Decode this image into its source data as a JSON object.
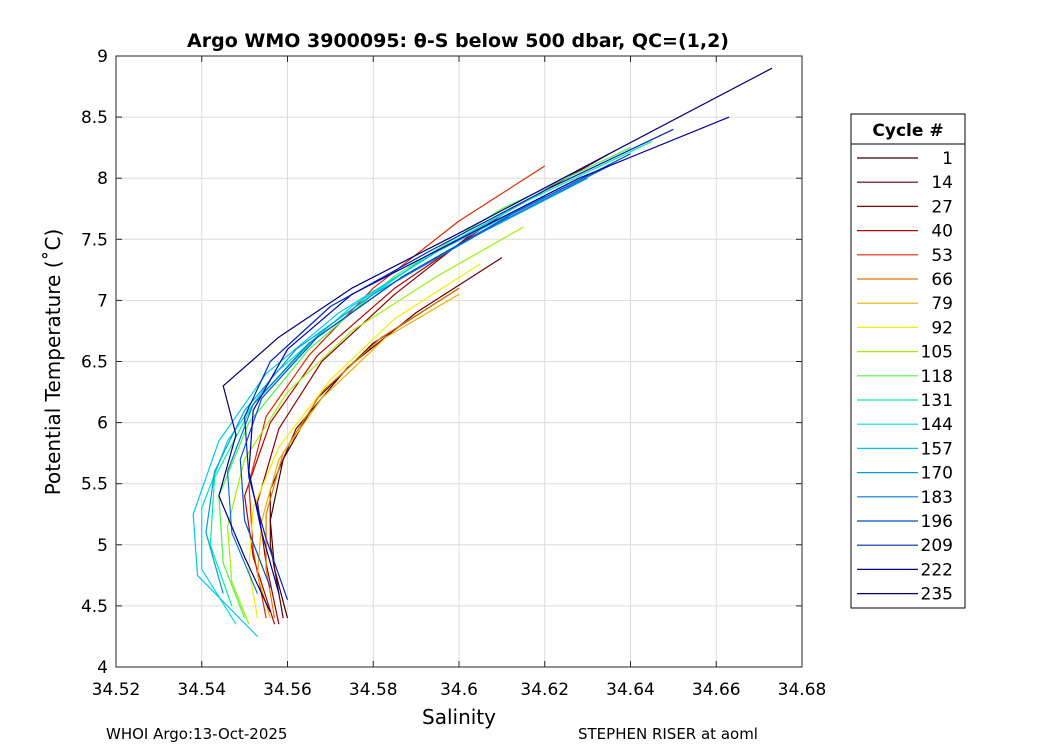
{
  "chart_data": {
    "type": "line",
    "title": "Argo WMO 3900095: θ-S below 500 dbar,  QC=(1,2)",
    "xlabel": "Salinity",
    "ylabel": "Potential Temperature (˚C)",
    "xlim": [
      34.52,
      34.68
    ],
    "ylim": [
      4,
      9
    ],
    "xticks": [
      34.52,
      34.54,
      34.56,
      34.58,
      34.6,
      34.62,
      34.64,
      34.66,
      34.68
    ],
    "xtick_labels": [
      "34.52",
      "34.54",
      "34.56",
      "34.58",
      "34.6",
      "34.62",
      "34.64",
      "34.66",
      "34.68"
    ],
    "yticks": [
      4,
      4.5,
      5,
      5.5,
      6,
      6.5,
      7,
      7.5,
      8,
      8.5,
      9
    ],
    "ytick_labels": [
      "4",
      "4.5",
      "5",
      "5.5",
      "6",
      "6.5",
      "7",
      "7.5",
      "8",
      "8.5",
      "9"
    ],
    "grid": true,
    "legend": {
      "title": "Cycle #",
      "placement": "outside-right",
      "entries": [
        {
          "label": "1",
          "color": "#3c0000"
        },
        {
          "label": "14",
          "color": "#640000"
        },
        {
          "label": "27",
          "color": "#8c0000"
        },
        {
          "label": "40",
          "color": "#b40000"
        },
        {
          "label": "53",
          "color": "#dc2800"
        },
        {
          "label": "66",
          "color": "#e67800"
        },
        {
          "label": "79",
          "color": "#e6b400"
        },
        {
          "label": "92",
          "color": "#f0f000"
        },
        {
          "label": "105",
          "color": "#a0f000"
        },
        {
          "label": "118",
          "color": "#50f050"
        },
        {
          "label": "131",
          "color": "#00f0a0"
        },
        {
          "label": "144",
          "color": "#00dcdc"
        },
        {
          "label": "157",
          "color": "#00c8f0"
        },
        {
          "label": "170",
          "color": "#00a0dc"
        },
        {
          "label": "183",
          "color": "#0078dc"
        },
        {
          "label": "196",
          "color": "#0050c8"
        },
        {
          "label": "209",
          "color": "#0028b4"
        },
        {
          "label": "222",
          "color": "#0000a0"
        },
        {
          "label": "235",
          "color": "#000078"
        }
      ]
    },
    "series": [
      {
        "name": "1",
        "color": "#3c0000",
        "points": [
          [
            34.6,
            7.1
          ],
          [
            34.58,
            6.65
          ],
          [
            34.567,
            6.2
          ],
          [
            34.559,
            5.7
          ],
          [
            34.556,
            5.2
          ],
          [
            34.557,
            4.8
          ],
          [
            34.56,
            4.4
          ]
        ]
      },
      {
        "name": "14",
        "color": "#640000",
        "points": [
          [
            34.61,
            7.35
          ],
          [
            34.59,
            6.9
          ],
          [
            34.574,
            6.45
          ],
          [
            34.562,
            5.95
          ],
          [
            34.556,
            5.45
          ],
          [
            34.556,
            5.0
          ],
          [
            34.559,
            4.4
          ]
        ]
      },
      {
        "name": "27",
        "color": "#8c0000",
        "points": [
          [
            34.63,
            8.1
          ],
          [
            34.605,
            7.6
          ],
          [
            34.585,
            7.05
          ],
          [
            34.568,
            6.5
          ],
          [
            34.558,
            5.95
          ],
          [
            34.553,
            5.35
          ],
          [
            34.555,
            4.85
          ],
          [
            34.558,
            4.35
          ]
        ]
      },
      {
        "name": "40",
        "color": "#b40000",
        "points": [
          [
            34.635,
            8.2
          ],
          [
            34.61,
            7.7
          ],
          [
            34.585,
            7.1
          ],
          [
            34.567,
            6.55
          ],
          [
            34.556,
            6.0
          ],
          [
            34.55,
            5.4
          ],
          [
            34.552,
            4.9
          ],
          [
            34.557,
            4.35
          ]
        ]
      },
      {
        "name": "53",
        "color": "#dc2800",
        "points": [
          [
            34.62,
            8.1
          ],
          [
            34.6,
            7.65
          ],
          [
            34.58,
            7.1
          ],
          [
            34.565,
            6.55
          ],
          [
            34.555,
            6.05
          ],
          [
            34.551,
            5.5
          ],
          [
            34.552,
            4.95
          ],
          [
            34.555,
            4.4
          ]
        ]
      },
      {
        "name": "66",
        "color": "#e67800",
        "points": [
          [
            34.6,
            7.1
          ],
          [
            34.582,
            6.7
          ],
          [
            34.568,
            6.25
          ],
          [
            34.559,
            5.75
          ],
          [
            34.555,
            5.25
          ],
          [
            34.555,
            4.8
          ],
          [
            34.557,
            4.4
          ]
        ]
      },
      {
        "name": "79",
        "color": "#e6b400",
        "points": [
          [
            34.6,
            7.05
          ],
          [
            34.583,
            6.7
          ],
          [
            34.568,
            6.2
          ],
          [
            34.558,
            5.7
          ],
          [
            34.554,
            5.2
          ],
          [
            34.553,
            4.75
          ],
          [
            34.556,
            4.4
          ]
        ]
      },
      {
        "name": "92",
        "color": "#f0f000",
        "points": [
          [
            34.605,
            7.3
          ],
          [
            34.585,
            6.85
          ],
          [
            34.57,
            6.35
          ],
          [
            34.558,
            5.8
          ],
          [
            34.552,
            5.3
          ],
          [
            34.551,
            4.8
          ],
          [
            34.553,
            4.4
          ]
        ]
      },
      {
        "name": "105",
        "color": "#a0f000",
        "points": [
          [
            34.615,
            7.6
          ],
          [
            34.595,
            7.2
          ],
          [
            34.575,
            6.75
          ],
          [
            34.56,
            6.25
          ],
          [
            34.55,
            5.7
          ],
          [
            34.546,
            5.15
          ],
          [
            34.547,
            4.7
          ],
          [
            34.551,
            4.35
          ]
        ]
      },
      {
        "name": "118",
        "color": "#50f050",
        "points": [
          [
            34.64,
            8.25
          ],
          [
            34.61,
            7.75
          ],
          [
            34.585,
            7.2
          ],
          [
            34.565,
            6.6
          ],
          [
            34.551,
            6.0
          ],
          [
            34.544,
            5.4
          ],
          [
            34.545,
            4.85
          ],
          [
            34.55,
            4.4
          ]
        ]
      },
      {
        "name": "131",
        "color": "#00f0a0",
        "points": [
          [
            34.645,
            8.3
          ],
          [
            34.615,
            7.8
          ],
          [
            34.59,
            7.3
          ],
          [
            34.568,
            6.75
          ],
          [
            34.552,
            6.15
          ],
          [
            34.543,
            5.55
          ],
          [
            34.542,
            5.0
          ],
          [
            34.547,
            4.5
          ]
        ]
      },
      {
        "name": "144",
        "color": "#00dcdc",
        "points": [
          [
            34.62,
            7.9
          ],
          [
            34.597,
            7.45
          ],
          [
            34.575,
            6.95
          ],
          [
            34.557,
            6.4
          ],
          [
            34.546,
            5.85
          ],
          [
            34.54,
            5.3
          ],
          [
            34.54,
            4.8
          ],
          [
            34.548,
            4.35
          ]
        ]
      },
      {
        "name": "157",
        "color": "#00c8f0",
        "points": [
          [
            34.62,
            7.85
          ],
          [
            34.595,
            7.4
          ],
          [
            34.572,
            6.9
          ],
          [
            34.555,
            6.4
          ],
          [
            34.544,
            5.85
          ],
          [
            34.538,
            5.25
          ],
          [
            34.539,
            4.75
          ],
          [
            34.553,
            4.25
          ]
        ]
      },
      {
        "name": "170",
        "color": "#00a0dc",
        "points": [
          [
            34.63,
            8.0
          ],
          [
            34.605,
            7.55
          ],
          [
            34.58,
            7.05
          ],
          [
            34.562,
            6.6
          ],
          [
            34.55,
            6.1
          ],
          [
            34.543,
            5.6
          ],
          [
            34.541,
            5.1
          ],
          [
            34.545,
            4.6
          ]
        ]
      },
      {
        "name": "183",
        "color": "#0078dc",
        "points": [
          [
            34.635,
            8.1
          ],
          [
            34.61,
            7.65
          ],
          [
            34.585,
            7.15
          ],
          [
            34.565,
            6.65
          ],
          [
            34.552,
            6.15
          ],
          [
            34.546,
            5.6
          ],
          [
            34.547,
            5.1
          ],
          [
            34.553,
            4.6
          ]
        ]
      },
      {
        "name": "196",
        "color": "#0050c8",
        "points": [
          [
            34.64,
            8.2
          ],
          [
            34.612,
            7.7
          ],
          [
            34.587,
            7.2
          ],
          [
            34.567,
            6.7
          ],
          [
            34.554,
            6.2
          ],
          [
            34.549,
            5.7
          ],
          [
            34.55,
            5.2
          ],
          [
            34.556,
            4.65
          ]
        ]
      },
      {
        "name": "209",
        "color": "#0028b4",
        "points": [
          [
            34.65,
            8.4
          ],
          [
            34.62,
            7.9
          ],
          [
            34.593,
            7.4
          ],
          [
            34.57,
            6.95
          ],
          [
            34.556,
            6.5
          ],
          [
            34.55,
            6.05
          ],
          [
            34.551,
            5.55
          ],
          [
            34.555,
            5.05
          ],
          [
            34.56,
            4.55
          ]
        ]
      },
      {
        "name": "222",
        "color": "#0000a0",
        "points": [
          [
            34.663,
            8.5
          ],
          [
            34.628,
            8.0
          ],
          [
            34.6,
            7.5
          ],
          [
            34.575,
            7.05
          ],
          [
            34.56,
            6.6
          ],
          [
            34.552,
            6.1
          ],
          [
            34.551,
            5.6
          ],
          [
            34.554,
            5.1
          ],
          [
            34.558,
            4.6
          ]
        ]
      },
      {
        "name": "235",
        "color": "#000078",
        "points": [
          [
            34.673,
            8.9
          ],
          [
            34.635,
            8.2
          ],
          [
            34.6,
            7.55
          ],
          [
            34.575,
            7.1
          ],
          [
            34.558,
            6.7
          ],
          [
            34.545,
            6.3
          ],
          [
            34.548,
            5.9
          ],
          [
            34.544,
            5.4
          ],
          [
            34.55,
            4.9
          ],
          [
            34.556,
            4.45
          ]
        ]
      }
    ]
  },
  "footer": {
    "left": "WHOI Argo:13-Oct-2025",
    "right": "STEPHEN RISER at aoml"
  }
}
